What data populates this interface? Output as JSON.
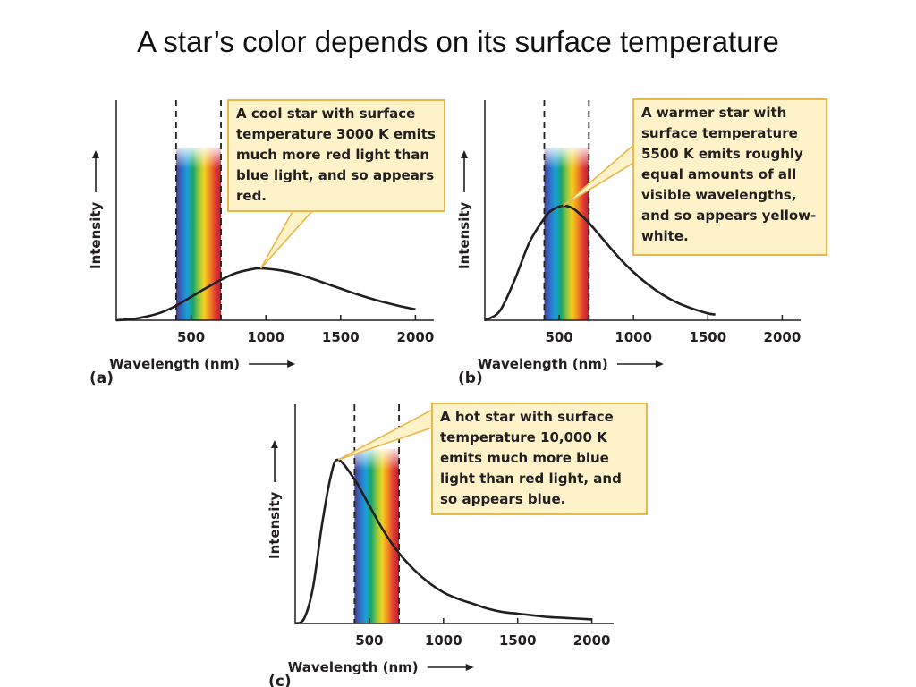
{
  "title": "A star’s color depends on its surface temperature",
  "colors": {
    "curve": "#231f20",
    "callout_fill": "#fdf2c8",
    "callout_border": "#e8b84a",
    "spectrum": [
      "#4b3a8c",
      "#2f6fc6",
      "#1aa0d8",
      "#17a36b",
      "#8cc63f",
      "#f6d020",
      "#f08a22",
      "#e23a34",
      "#b5222f"
    ]
  },
  "chart_data": [
    {
      "type": "line",
      "panel_label": "(a)",
      "xlabel": "Wavelength (nm)",
      "ylabel": "Intensity",
      "xticks": [
        "500",
        "1000",
        "1500",
        "2000"
      ],
      "xlim": [
        0,
        2100
      ],
      "visible_band": [
        400,
        700
      ],
      "callout": "A cool star with surface temperature 3000 K emits much more red light than blue light, and so appears red.",
      "series": [
        {
          "x": [
            0,
            100,
            200,
            300,
            400,
            500,
            600,
            700,
            800,
            900,
            966,
            1100,
            1200,
            1300,
            1400,
            1500,
            1600,
            1700,
            1800,
            1900,
            2000
          ],
          "y": [
            0,
            0.02,
            0.07,
            0.15,
            0.28,
            0.45,
            0.62,
            0.78,
            0.91,
            0.98,
            1.0,
            0.96,
            0.9,
            0.81,
            0.71,
            0.61,
            0.51,
            0.42,
            0.34,
            0.27,
            0.21
          ]
        }
      ]
    },
    {
      "type": "line",
      "panel_label": "(b)",
      "xlabel": "Wavelength (nm)",
      "ylabel": "Intensity",
      "xticks": [
        "500",
        "1000",
        "1500",
        "2000"
      ],
      "xlim": [
        0,
        2100
      ],
      "visible_band": [
        400,
        700
      ],
      "callout": "A warmer star with surface temperature 5500 K emits roughly equal amounts of all visible wavelengths, and so appears yellow-white.",
      "series": [
        {
          "x": [
            0,
            100,
            200,
            300,
            400,
            450,
            527,
            600,
            700,
            800,
            900,
            1000,
            1100,
            1200,
            1300,
            1400,
            1500,
            1550
          ],
          "y": [
            0,
            0.08,
            0.35,
            0.68,
            0.89,
            0.96,
            1.0,
            0.97,
            0.85,
            0.7,
            0.55,
            0.42,
            0.31,
            0.22,
            0.15,
            0.1,
            0.06,
            0.05
          ]
        }
      ]
    },
    {
      "type": "line",
      "panel_label": "(c)",
      "xlabel": "Wavelength (nm)",
      "ylabel": "Intensity",
      "xticks": [
        "500",
        "1000",
        "1500",
        "2000"
      ],
      "xlim": [
        0,
        2100
      ],
      "visible_band": [
        400,
        700
      ],
      "callout": "A hot star with surface temperature 10,000 K emits much more blue light than red light, and so appears blue.",
      "series": [
        {
          "x": [
            0,
            60,
            120,
            180,
            240,
            290,
            400,
            500,
            600,
            700,
            800,
            900,
            1000,
            1100,
            1200,
            1300,
            1400,
            1500,
            1600,
            1700,
            1800,
            1900,
            2000
          ],
          "y": [
            0,
            0.03,
            0.22,
            0.6,
            0.9,
            1.0,
            0.88,
            0.72,
            0.56,
            0.43,
            0.33,
            0.25,
            0.19,
            0.15,
            0.12,
            0.09,
            0.07,
            0.06,
            0.05,
            0.04,
            0.035,
            0.03,
            0.025
          ]
        }
      ]
    }
  ]
}
